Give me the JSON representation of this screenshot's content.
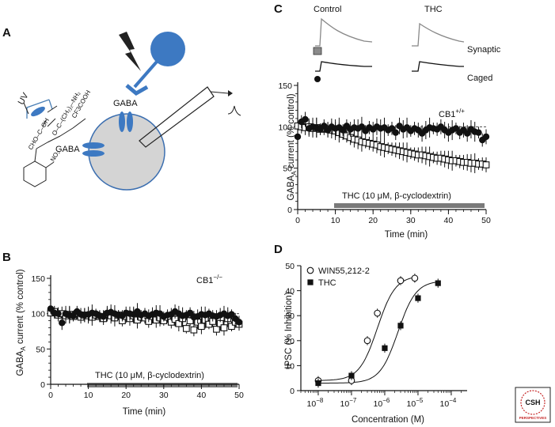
{
  "figure": {
    "panel_a": {
      "letter": "A",
      "uv_label": "UV",
      "gaba_label_top": "GABA",
      "gaba_label_left": "GABA",
      "compound_label": "CF3COOH"
    },
    "panel_b": {
      "letter": "B"
    },
    "panel_c": {
      "letter": "C",
      "control_label": "Control",
      "thc_label": "THC",
      "synaptic_label": "Synaptic",
      "caged_label": "Caged"
    },
    "panel_d": {
      "letter": "D"
    },
    "logo": {
      "text_top": "CSH",
      "text_bottom": "PERSPECTIVES"
    }
  },
  "chart_data": [
    {
      "id": "panel_b",
      "type": "scatter",
      "title": "",
      "xlabel": "Time (min)",
      "ylabel": "GABAA current (% control)",
      "xlim": [
        0,
        50
      ],
      "ylim": [
        0,
        150
      ],
      "xticks": [
        0,
        10,
        20,
        30,
        40,
        50
      ],
      "yticks": [
        0,
        50,
        100,
        150
      ],
      "annotation": "CB1−/−",
      "bar_label": "THC (10 μM, β-cyclodextrin)",
      "bar_range": [
        10,
        50
      ],
      "series": [
        {
          "name": "synaptic (filled circles)",
          "marker": "filled-circle",
          "x": [
            0,
            1,
            2,
            3,
            4,
            5,
            6,
            7,
            8,
            9,
            10,
            11,
            12,
            13,
            14,
            15,
            16,
            17,
            18,
            19,
            20,
            21,
            22,
            23,
            24,
            25,
            26,
            27,
            28,
            29,
            30,
            31,
            32,
            33,
            34,
            35,
            36,
            37,
            38,
            39,
            40,
            41,
            42,
            43,
            44,
            45,
            46,
            47,
            48,
            49,
            50
          ],
          "y": [
            107,
            101,
            100,
            87,
            100,
            98,
            97,
            103,
            99,
            98,
            99,
            101,
            100,
            97,
            96,
            101,
            102,
            100,
            98,
            97,
            101,
            100,
            99,
            103,
            98,
            100,
            97,
            99,
            101,
            100,
            96,
            98,
            99,
            103,
            100,
            97,
            98,
            101,
            95,
            96,
            99,
            98,
            100,
            97,
            96,
            98,
            100,
            97,
            99,
            93,
            88
          ]
        },
        {
          "name": "caged (open squares)",
          "marker": "open-square",
          "x": [
            0,
            1,
            2,
            3,
            4,
            5,
            6,
            7,
            8,
            9,
            10,
            11,
            12,
            13,
            14,
            15,
            16,
            17,
            18,
            19,
            20,
            21,
            22,
            23,
            24,
            25,
            26,
            27,
            28,
            29,
            30,
            31,
            32,
            33,
            34,
            35,
            36,
            37,
            38,
            39,
            40,
            41,
            42,
            43,
            44,
            45,
            46,
            47,
            48,
            49,
            50
          ],
          "y": [
            101,
            103,
            98,
            100,
            97,
            99,
            96,
            100,
            95,
            98,
            97,
            95,
            98,
            96,
            93,
            99,
            97,
            94,
            98,
            90,
            96,
            93,
            97,
            91,
            95,
            94,
            89,
            96,
            91,
            94,
            90,
            95,
            88,
            92,
            86,
            93,
            79,
            90,
            77,
            88,
            82,
            91,
            85,
            89,
            78,
            86,
            80,
            93,
            82,
            88,
            85
          ]
        }
      ]
    },
    {
      "id": "panel_c",
      "type": "scatter",
      "title": "",
      "xlabel": "Time (min)",
      "ylabel": "GABAA current (% control)",
      "xlim": [
        0,
        50
      ],
      "ylim": [
        0,
        150
      ],
      "xticks": [
        0,
        10,
        20,
        30,
        40,
        50
      ],
      "yticks": [
        0,
        50,
        100,
        150
      ],
      "annotation": "CB1+/+",
      "bar_label": "THC (10 μM, β-cyclodextrin)",
      "bar_range": [
        10,
        49
      ],
      "series": [
        {
          "name": "synaptic (filled circles)",
          "marker": "filled-circle",
          "x": [
            0,
            1,
            2,
            3,
            4,
            5,
            6,
            7,
            8,
            9,
            10,
            11,
            12,
            13,
            14,
            15,
            16,
            17,
            18,
            19,
            20,
            21,
            22,
            23,
            24,
            25,
            26,
            27,
            28,
            29,
            30,
            31,
            32,
            33,
            34,
            35,
            36,
            37,
            38,
            39,
            40,
            41,
            42,
            43,
            44,
            45,
            46,
            47,
            48,
            49,
            50
          ],
          "y": [
            88,
            106,
            109,
            98,
            100,
            99,
            97,
            101,
            96,
            100,
            98,
            99,
            96,
            101,
            97,
            99,
            98,
            100,
            95,
            99,
            97,
            100,
            98,
            99,
            96,
            98,
            93,
            101,
            97,
            99,
            95,
            98,
            96,
            92,
            96,
            99,
            98,
            97,
            100,
            96,
            93,
            96,
            98,
            93,
            96,
            92,
            97,
            94,
            93,
            84,
            88
          ]
        },
        {
          "name": "caged (open squares)",
          "marker": "open-square",
          "x": [
            0,
            1,
            2,
            3,
            4,
            5,
            6,
            7,
            8,
            9,
            10,
            11,
            12,
            13,
            14,
            15,
            16,
            17,
            18,
            19,
            20,
            21,
            22,
            23,
            24,
            25,
            26,
            27,
            28,
            29,
            30,
            31,
            32,
            33,
            34,
            35,
            36,
            37,
            38,
            39,
            40,
            41,
            42,
            43,
            44,
            45,
            46,
            47,
            48,
            49,
            50
          ],
          "y": [
            101,
            100,
            99,
            100,
            98,
            99,
            97,
            98,
            97,
            96,
            95,
            93,
            91,
            89,
            87,
            85,
            84,
            82,
            81,
            80,
            79,
            78,
            76,
            75,
            74,
            73,
            72,
            71,
            70,
            69,
            68,
            67,
            66,
            66,
            65,
            64,
            63,
            62,
            62,
            61,
            60,
            59,
            59,
            58,
            57,
            57,
            56,
            56,
            55,
            55,
            54
          ]
        }
      ],
      "trace_labels": [
        "Synaptic",
        "Caged"
      ]
    },
    {
      "id": "panel_d",
      "type": "scatter",
      "title": "",
      "xlabel": "Concentration (M)",
      "ylabel": "IPSC (% Inhibition)",
      "xscale": "log",
      "xlim": [
        3e-09,
        0.0003
      ],
      "ylim": [
        0,
        50
      ],
      "yticks": [
        0,
        10,
        20,
        30,
        40,
        50
      ],
      "xtick_labels": [
        "10−8",
        "10−7",
        "10−6",
        "10−5",
        "10−4"
      ],
      "legend_position": "top-left",
      "series": [
        {
          "name": "WIN55,212-2",
          "marker": "open-circle",
          "x": [
            1e-08,
            1e-07,
            3e-07,
            6e-07,
            3e-06,
            8e-06
          ],
          "y": [
            4,
            4,
            20,
            31,
            44,
            45
          ],
          "ec50": 6e-07,
          "top": 46
        },
        {
          "name": "THC",
          "marker": "filled-square",
          "x": [
            1e-08,
            1e-07,
            1e-06,
            3e-06,
            1e-05,
            4e-05
          ],
          "y": [
            3,
            6,
            17,
            26,
            37,
            43
          ],
          "ec50": 2.5e-06,
          "top": 44
        }
      ]
    }
  ]
}
